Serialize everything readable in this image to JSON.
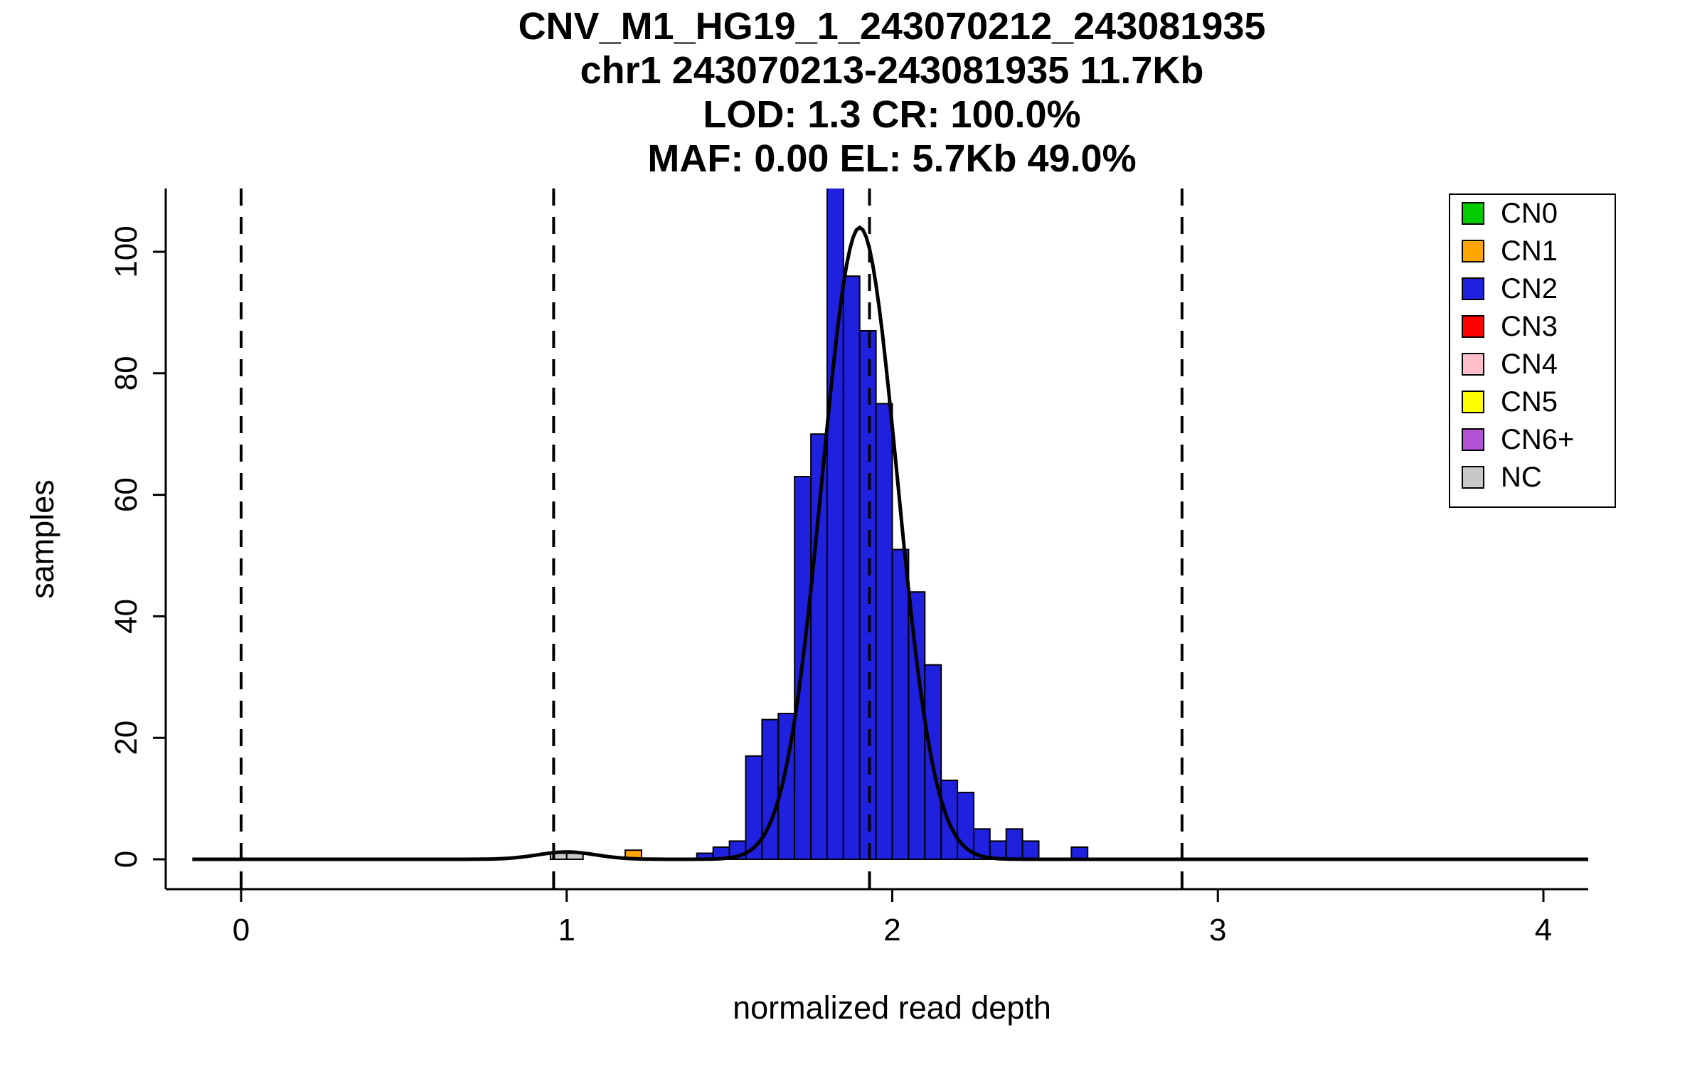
{
  "title": {
    "lines": [
      "CNV_M1_HG19_1_243070212_243081935",
      "chr1 243070213-243081935 11.7Kb",
      "LOD: 1.3 CR: 100.0%",
      "MAF: 0.00 EL: 5.7Kb 49.0%"
    ]
  },
  "axes": {
    "xlabel": "normalized read depth",
    "ylabel": "samples"
  },
  "legend": {
    "items": [
      {
        "label": "CN0",
        "color": "#00CC00"
      },
      {
        "label": "CN1",
        "color": "#FFA500"
      },
      {
        "label": "CN2",
        "color": "#2020DF"
      },
      {
        "label": "CN3",
        "color": "#FF0000"
      },
      {
        "label": "CN4",
        "color": "#FFC0CB"
      },
      {
        "label": "CN5",
        "color": "#FFFF00"
      },
      {
        "label": "CN6+",
        "color": "#B153D4"
      },
      {
        "label": "NC",
        "color": "#C8C8C8"
      }
    ]
  },
  "chart_data": {
    "type": "bar",
    "subtype": "histogram",
    "title": "CNV_M1_HG19_1_243070212_243081935",
    "xlabel": "normalized read depth",
    "ylabel": "samples",
    "xlim": [
      -0.15,
      4.15
    ],
    "ylim": [
      0,
      113
    ],
    "x_ticks": [
      0,
      1,
      2,
      3,
      4
    ],
    "y_ticks": [
      0,
      20,
      40,
      60,
      80,
      100
    ],
    "grid": false,
    "legend_position": "top-right",
    "bin_width": 0.05,
    "bars": [
      {
        "x": 0.95,
        "h": 1,
        "cn": "NC"
      },
      {
        "x": 1.0,
        "h": 1,
        "cn": "NC"
      },
      {
        "x": 1.18,
        "h": 1.5,
        "cn": "CN1"
      },
      {
        "x": 1.4,
        "h": 1,
        "cn": "CN2"
      },
      {
        "x": 1.45,
        "h": 2,
        "cn": "CN2"
      },
      {
        "x": 1.5,
        "h": 3,
        "cn": "CN2"
      },
      {
        "x": 1.55,
        "h": 17,
        "cn": "CN2"
      },
      {
        "x": 1.6,
        "h": 23,
        "cn": "CN2"
      },
      {
        "x": 1.65,
        "h": 24,
        "cn": "CN2"
      },
      {
        "x": 1.7,
        "h": 63,
        "cn": "CN2"
      },
      {
        "x": 1.75,
        "h": 70,
        "cn": "CN2"
      },
      {
        "x": 1.8,
        "h": 113,
        "cn": "CN2"
      },
      {
        "x": 1.85,
        "h": 96,
        "cn": "CN2"
      },
      {
        "x": 1.9,
        "h": 87,
        "cn": "CN2"
      },
      {
        "x": 1.95,
        "h": 75,
        "cn": "CN2"
      },
      {
        "x": 2.0,
        "h": 51,
        "cn": "CN2"
      },
      {
        "x": 2.05,
        "h": 44,
        "cn": "CN2"
      },
      {
        "x": 2.1,
        "h": 32,
        "cn": "CN2"
      },
      {
        "x": 2.15,
        "h": 13,
        "cn": "CN2"
      },
      {
        "x": 2.2,
        "h": 11,
        "cn": "CN2"
      },
      {
        "x": 2.25,
        "h": 5,
        "cn": "CN2"
      },
      {
        "x": 2.3,
        "h": 3,
        "cn": "CN2"
      },
      {
        "x": 2.35,
        "h": 5,
        "cn": "CN2"
      },
      {
        "x": 2.4,
        "h": 3,
        "cn": "CN2"
      },
      {
        "x": 2.55,
        "h": 2,
        "cn": "CN2"
      }
    ],
    "curve": {
      "components": [
        {
          "amp": 104,
          "mean": 1.9,
          "sd": 0.115
        },
        {
          "amp": 1.2,
          "mean": 1.0,
          "sd": 0.09
        }
      ]
    },
    "dashed_lines": [
      0.0,
      0.96,
      1.93,
      2.89
    ]
  }
}
